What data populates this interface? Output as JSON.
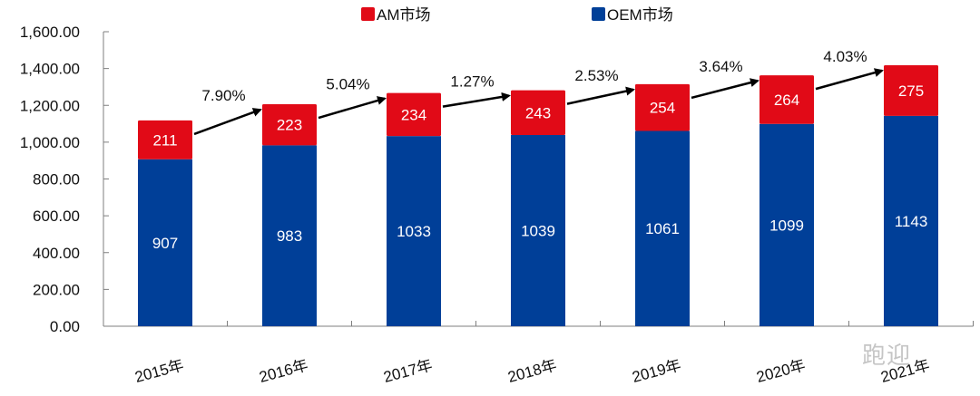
{
  "chart_data": {
    "type": "bar",
    "stacked": true,
    "title": "",
    "xlabel": "",
    "ylabel": "",
    "categories": [
      "2015年",
      "2016年",
      "2017年",
      "2018年",
      "2019年",
      "2020年",
      "2021年"
    ],
    "series": [
      {
        "name": "OEM市场",
        "color": "#003F98",
        "values": [
          907,
          983,
          1033,
          1039,
          1061,
          1099,
          1143
        ]
      },
      {
        "name": "AM市场",
        "color": "#E10A17",
        "values": [
          211,
          223,
          234,
          243,
          254,
          264,
          275
        ]
      }
    ],
    "growth_annotations": [
      "7.90%",
      "5.04%",
      "1.27%",
      "2.53%",
      "3.64%",
      "4.03%"
    ],
    "ylim": [
      0,
      1600
    ],
    "yticks": [
      0,
      200,
      400,
      600,
      800,
      1000,
      1200,
      1400,
      1600
    ],
    "ytick_labels": [
      "0.00",
      "200.00",
      "400.00",
      "600.00",
      "800.00",
      "1,000.00",
      "1,200.00",
      "1,400.00",
      "1,600.00"
    ],
    "grid": false,
    "legend": {
      "placement": "top-center",
      "order": [
        "AM市场",
        "OEM市场"
      ]
    }
  },
  "watermark": "跑迎"
}
